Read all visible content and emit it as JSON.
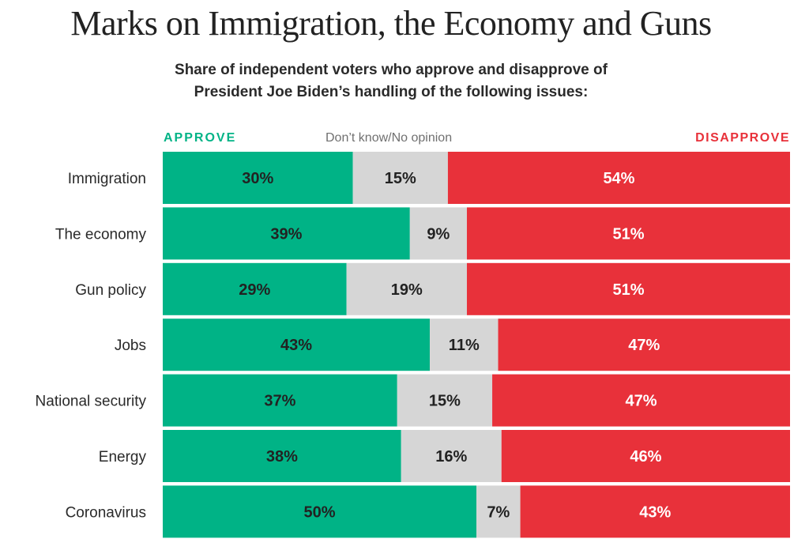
{
  "chart_data": {
    "type": "bar",
    "orientation": "horizontal-stacked",
    "title": "Marks on Immigration, the Economy and Guns",
    "subtitle": [
      "Share of independent voters who approve and disapprove of",
      "President Joe Biden’s handling of the following issues:"
    ],
    "legend": {
      "approve": "APPROVE",
      "dont_know": "Don’t know/No opinion",
      "disapprove": "DISAPPROVE"
    },
    "colors": {
      "approve": "#00b386",
      "dont_know": "#d6d6d6",
      "disapprove": "#e8313a"
    },
    "categories": [
      "Immigration",
      "The economy",
      "Gun policy",
      "Jobs",
      "National security",
      "Energy",
      "Coronavirus"
    ],
    "series": [
      {
        "name": "Approve",
        "key": "approve",
        "values": [
          30,
          39,
          29,
          43,
          37,
          38,
          50
        ]
      },
      {
        "name": "Don’t know/No opinion",
        "key": "dont_know",
        "values": [
          15,
          9,
          19,
          11,
          15,
          16,
          7
        ]
      },
      {
        "name": "Disapprove",
        "key": "disapprove",
        "values": [
          54,
          51,
          51,
          47,
          47,
          46,
          43
        ]
      }
    ],
    "value_suffix": "%",
    "xlim": [
      0,
      100
    ],
    "legend_position": "top"
  }
}
